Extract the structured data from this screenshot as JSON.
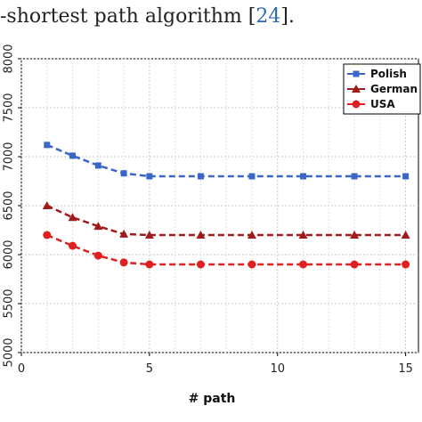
{
  "caption": {
    "text": "-shortest path algorithm [",
    "ref": "24",
    "suffix": "]."
  },
  "chart_data": {
    "type": "line",
    "xlabel": "# path",
    "ylabel": "",
    "xlim": [
      0,
      15.5
    ],
    "ylim": [
      5000,
      8000
    ],
    "xticks": [
      0,
      5,
      10,
      15
    ],
    "yticks": [
      5000,
      5500,
      6000,
      6500,
      7000,
      7500,
      8000
    ],
    "grid": true,
    "legend_position": "top-right",
    "x": [
      1,
      2,
      3,
      4,
      5,
      7,
      9,
      11,
      13,
      15
    ],
    "series": [
      {
        "name": "Polish",
        "marker": "square",
        "color": "#3a66c8",
        "values": [
          7120,
          7010,
          6910,
          6830,
          6800,
          6800,
          6800,
          6800,
          6800,
          6800
        ]
      },
      {
        "name": "German",
        "marker": "triangle",
        "color": "#a01c1c",
        "values": [
          6500,
          6380,
          6290,
          6210,
          6200,
          6200,
          6200,
          6200,
          6200,
          6200
        ]
      },
      {
        "name": "USA",
        "marker": "circle",
        "color": "#e02020",
        "values": [
          6200,
          6090,
          5990,
          5920,
          5900,
          5900,
          5900,
          5900,
          5900,
          5900
        ]
      }
    ]
  }
}
